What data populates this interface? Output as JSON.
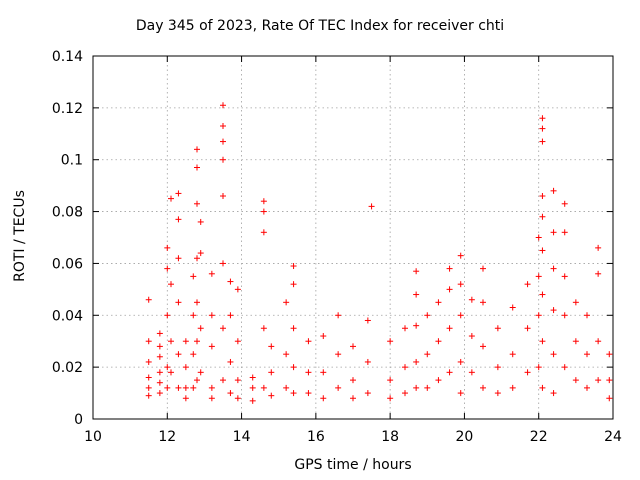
{
  "chart_data": {
    "type": "scatter",
    "title": "Day 345 of 2023, Rate Of TEC Index for receiver chti",
    "xlabel": "GPS time / hours",
    "ylabel": "ROTI / TECUs",
    "xlim": [
      10,
      24
    ],
    "ylim": [
      0,
      0.14
    ],
    "xticks": [
      "10",
      "12",
      "14",
      "16",
      "18",
      "20",
      "22",
      "24"
    ],
    "yticks": [
      "0",
      "0.02",
      "0.04",
      "0.06",
      "0.08",
      "0.1",
      "0.12",
      "0.14"
    ],
    "grid": true,
    "marker": "+",
    "color": "#ff0000",
    "points": [
      [
        11.5,
        0.012
      ],
      [
        11.5,
        0.046
      ],
      [
        11.5,
        0.03
      ],
      [
        11.5,
        0.009
      ],
      [
        11.5,
        0.016
      ],
      [
        11.5,
        0.022
      ],
      [
        11.8,
        0.033
      ],
      [
        11.8,
        0.028
      ],
      [
        11.8,
        0.018
      ],
      [
        11.8,
        0.01
      ],
      [
        11.8,
        0.024
      ],
      [
        11.8,
        0.014
      ],
      [
        12.0,
        0.066
      ],
      [
        12.0,
        0.058
      ],
      [
        12.0,
        0.04
      ],
      [
        12.0,
        0.02
      ],
      [
        12.0,
        0.012
      ],
      [
        12.1,
        0.085
      ],
      [
        12.1,
        0.052
      ],
      [
        12.1,
        0.03
      ],
      [
        12.1,
        0.018
      ],
      [
        12.3,
        0.087
      ],
      [
        12.3,
        0.077
      ],
      [
        12.3,
        0.062
      ],
      [
        12.3,
        0.045
      ],
      [
        12.3,
        0.025
      ],
      [
        12.3,
        0.012
      ],
      [
        12.5,
        0.03
      ],
      [
        12.5,
        0.02
      ],
      [
        12.5,
        0.012
      ],
      [
        12.5,
        0.008
      ],
      [
        12.7,
        0.055
      ],
      [
        12.7,
        0.04
      ],
      [
        12.7,
        0.025
      ],
      [
        12.7,
        0.012
      ],
      [
        12.8,
        0.104
      ],
      [
        12.8,
        0.097
      ],
      [
        12.8,
        0.083
      ],
      [
        12.8,
        0.062
      ],
      [
        12.8,
        0.045
      ],
      [
        12.8,
        0.03
      ],
      [
        12.8,
        0.015
      ],
      [
        12.9,
        0.076
      ],
      [
        12.9,
        0.064
      ],
      [
        12.9,
        0.035
      ],
      [
        12.9,
        0.018
      ],
      [
        13.2,
        0.056
      ],
      [
        13.2,
        0.04
      ],
      [
        13.2,
        0.028
      ],
      [
        13.2,
        0.012
      ],
      [
        13.2,
        0.008
      ],
      [
        13.5,
        0.121
      ],
      [
        13.5,
        0.113
      ],
      [
        13.5,
        0.107
      ],
      [
        13.5,
        0.1
      ],
      [
        13.5,
        0.086
      ],
      [
        13.5,
        0.06
      ],
      [
        13.5,
        0.035
      ],
      [
        13.5,
        0.015
      ],
      [
        13.7,
        0.053
      ],
      [
        13.7,
        0.04
      ],
      [
        13.7,
        0.022
      ],
      [
        13.7,
        0.01
      ],
      [
        13.9,
        0.05
      ],
      [
        13.9,
        0.03
      ],
      [
        13.9,
        0.015
      ],
      [
        13.9,
        0.008
      ],
      [
        14.3,
        0.012
      ],
      [
        14.3,
        0.007
      ],
      [
        14.3,
        0.016
      ],
      [
        14.6,
        0.084
      ],
      [
        14.6,
        0.08
      ],
      [
        14.6,
        0.072
      ],
      [
        14.6,
        0.035
      ],
      [
        14.6,
        0.012
      ],
      [
        14.8,
        0.028
      ],
      [
        14.8,
        0.018
      ],
      [
        14.8,
        0.009
      ],
      [
        15.2,
        0.045
      ],
      [
        15.2,
        0.025
      ],
      [
        15.2,
        0.012
      ],
      [
        15.4,
        0.059
      ],
      [
        15.4,
        0.052
      ],
      [
        15.4,
        0.035
      ],
      [
        15.4,
        0.02
      ],
      [
        15.4,
        0.01
      ],
      [
        15.8,
        0.03
      ],
      [
        15.8,
        0.018
      ],
      [
        15.8,
        0.01
      ],
      [
        16.2,
        0.032
      ],
      [
        16.2,
        0.018
      ],
      [
        16.2,
        0.008
      ],
      [
        16.6,
        0.04
      ],
      [
        16.6,
        0.025
      ],
      [
        16.6,
        0.012
      ],
      [
        17.0,
        0.028
      ],
      [
        17.0,
        0.015
      ],
      [
        17.0,
        0.008
      ],
      [
        17.4,
        0.038
      ],
      [
        17.4,
        0.022
      ],
      [
        17.4,
        0.01
      ],
      [
        17.5,
        0.082
      ],
      [
        18.0,
        0.03
      ],
      [
        18.0,
        0.015
      ],
      [
        18.0,
        0.008
      ],
      [
        18.4,
        0.035
      ],
      [
        18.4,
        0.02
      ],
      [
        18.4,
        0.01
      ],
      [
        18.7,
        0.057
      ],
      [
        18.7,
        0.048
      ],
      [
        18.7,
        0.036
      ],
      [
        18.7,
        0.022
      ],
      [
        18.7,
        0.012
      ],
      [
        19.0,
        0.04
      ],
      [
        19.0,
        0.025
      ],
      [
        19.0,
        0.012
      ],
      [
        19.3,
        0.045
      ],
      [
        19.3,
        0.03
      ],
      [
        19.3,
        0.015
      ],
      [
        19.6,
        0.058
      ],
      [
        19.6,
        0.05
      ],
      [
        19.6,
        0.035
      ],
      [
        19.6,
        0.018
      ],
      [
        19.9,
        0.063
      ],
      [
        19.9,
        0.052
      ],
      [
        19.9,
        0.04
      ],
      [
        19.9,
        0.022
      ],
      [
        19.9,
        0.01
      ],
      [
        20.2,
        0.046
      ],
      [
        20.2,
        0.032
      ],
      [
        20.2,
        0.018
      ],
      [
        20.5,
        0.058
      ],
      [
        20.5,
        0.045
      ],
      [
        20.5,
        0.028
      ],
      [
        20.5,
        0.012
      ],
      [
        20.9,
        0.035
      ],
      [
        20.9,
        0.02
      ],
      [
        20.9,
        0.01
      ],
      [
        21.3,
        0.043
      ],
      [
        21.3,
        0.025
      ],
      [
        21.3,
        0.012
      ],
      [
        21.7,
        0.052
      ],
      [
        21.7,
        0.035
      ],
      [
        21.7,
        0.018
      ],
      [
        22.0,
        0.07
      ],
      [
        22.0,
        0.055
      ],
      [
        22.0,
        0.04
      ],
      [
        22.0,
        0.02
      ],
      [
        22.1,
        0.116
      ],
      [
        22.1,
        0.112
      ],
      [
        22.1,
        0.107
      ],
      [
        22.1,
        0.086
      ],
      [
        22.1,
        0.078
      ],
      [
        22.1,
        0.065
      ],
      [
        22.1,
        0.048
      ],
      [
        22.1,
        0.03
      ],
      [
        22.1,
        0.012
      ],
      [
        22.4,
        0.088
      ],
      [
        22.4,
        0.072
      ],
      [
        22.4,
        0.058
      ],
      [
        22.4,
        0.042
      ],
      [
        22.4,
        0.025
      ],
      [
        22.4,
        0.01
      ],
      [
        22.7,
        0.083
      ],
      [
        22.7,
        0.072
      ],
      [
        22.7,
        0.055
      ],
      [
        22.7,
        0.04
      ],
      [
        22.7,
        0.02
      ],
      [
        23.0,
        0.045
      ],
      [
        23.0,
        0.03
      ],
      [
        23.0,
        0.015
      ],
      [
        23.3,
        0.04
      ],
      [
        23.3,
        0.025
      ],
      [
        23.3,
        0.012
      ],
      [
        23.6,
        0.066
      ],
      [
        23.6,
        0.056
      ],
      [
        23.6,
        0.03
      ],
      [
        23.6,
        0.015
      ],
      [
        23.9,
        0.025
      ],
      [
        23.9,
        0.015
      ],
      [
        23.9,
        0.008
      ]
    ]
  }
}
